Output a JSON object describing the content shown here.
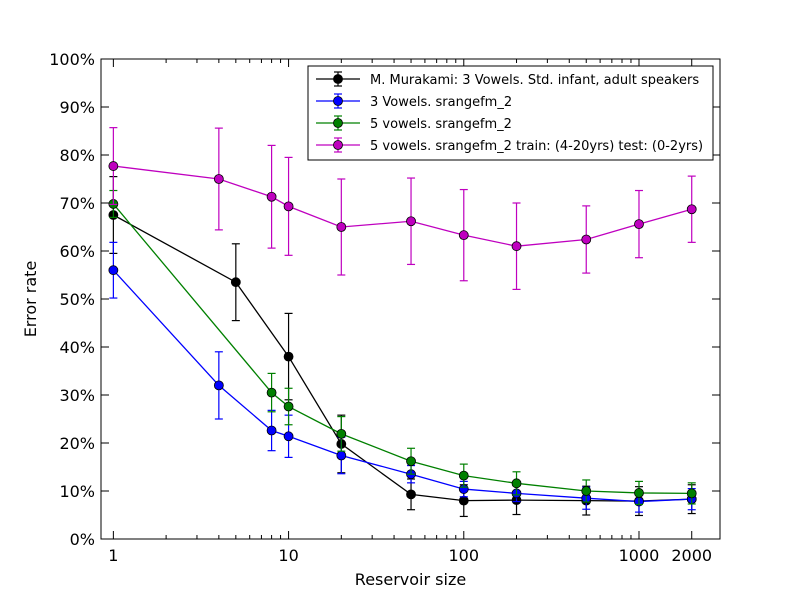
{
  "chart_data": {
    "type": "line",
    "xscale": "log",
    "xlabel": "Reservoir size",
    "ylabel": "Error rate",
    "xlim": [
      0.85,
      2900
    ],
    "ylim": [
      0,
      100
    ],
    "xticks": [
      {
        "value": 1,
        "label": "1"
      },
      {
        "value": 10,
        "label": "10"
      },
      {
        "value": 100,
        "label": "100"
      },
      {
        "value": 1000,
        "label": "1000"
      },
      {
        "value": 2000,
        "label": "2000"
      }
    ],
    "yticks": [
      {
        "value": 0,
        "label": "0%"
      },
      {
        "value": 10,
        "label": "10%"
      },
      {
        "value": 20,
        "label": "20%"
      },
      {
        "value": 30,
        "label": "30%"
      },
      {
        "value": 40,
        "label": "40%"
      },
      {
        "value": 50,
        "label": "50%"
      },
      {
        "value": 60,
        "label": "60%"
      },
      {
        "value": 70,
        "label": "70%"
      },
      {
        "value": 80,
        "label": "80%"
      },
      {
        "value": 90,
        "label": "90%"
      },
      {
        "value": 100,
        "label": "100%"
      }
    ],
    "legend_position": "top-right",
    "series": [
      {
        "name": "M. Murakami: 3 Vowels. Std. infant, adult speakers",
        "color": "#000000",
        "x": [
          1,
          5,
          10,
          20,
          50,
          100,
          200,
          500,
          1000,
          2000
        ],
        "y": [
          67.5,
          53.5,
          38,
          19.8,
          9.3,
          8,
          8.1,
          8,
          7.9,
          8.3
        ],
        "err": [
          8,
          8,
          9,
          6,
          3.2,
          3.3,
          3,
          3,
          3,
          3
        ]
      },
      {
        "name": "3 Vowels. srangefm_2",
        "color": "#0000ff",
        "x": [
          1,
          4,
          8,
          10,
          20,
          50,
          100,
          200,
          500,
          1000,
          2000
        ],
        "y": [
          56,
          32,
          22.6,
          21.4,
          17.4,
          13.5,
          10.4,
          9.5,
          8.5,
          7.8,
          8.3
        ],
        "err": [
          5.8,
          7,
          4.2,
          4.4,
          3.8,
          1.8,
          1.6,
          1.7,
          2.3,
          2.2,
          2.2
        ]
      },
      {
        "name": "5 vowels. srangefm_2",
        "color": "#008000",
        "x": [
          1,
          8,
          10,
          20,
          50,
          100,
          200,
          500,
          1000,
          2000
        ],
        "y": [
          69.8,
          30.5,
          27.6,
          21.9,
          16.2,
          13.2,
          11.6,
          10,
          9.6,
          9.5
        ],
        "err": [
          2.8,
          4,
          3.8,
          3.6,
          2.7,
          2.4,
          2.4,
          2.3,
          2.4,
          2.2
        ]
      },
      {
        "name": "5 vowels. srangefm_2 train: (4-20yrs) test: (0-2yrs)",
        "color": "#bf00bf",
        "x": [
          1,
          4,
          8,
          10,
          20,
          50,
          100,
          200,
          500,
          1000,
          2000
        ],
        "y": [
          77.7,
          75,
          71.3,
          69.3,
          65,
          66.2,
          63.3,
          61,
          62.4,
          65.6,
          68.7
        ],
        "err": [
          8,
          10.6,
          10.7,
          10.2,
          10,
          9,
          9.5,
          9,
          7,
          7,
          6.9
        ]
      }
    ]
  }
}
